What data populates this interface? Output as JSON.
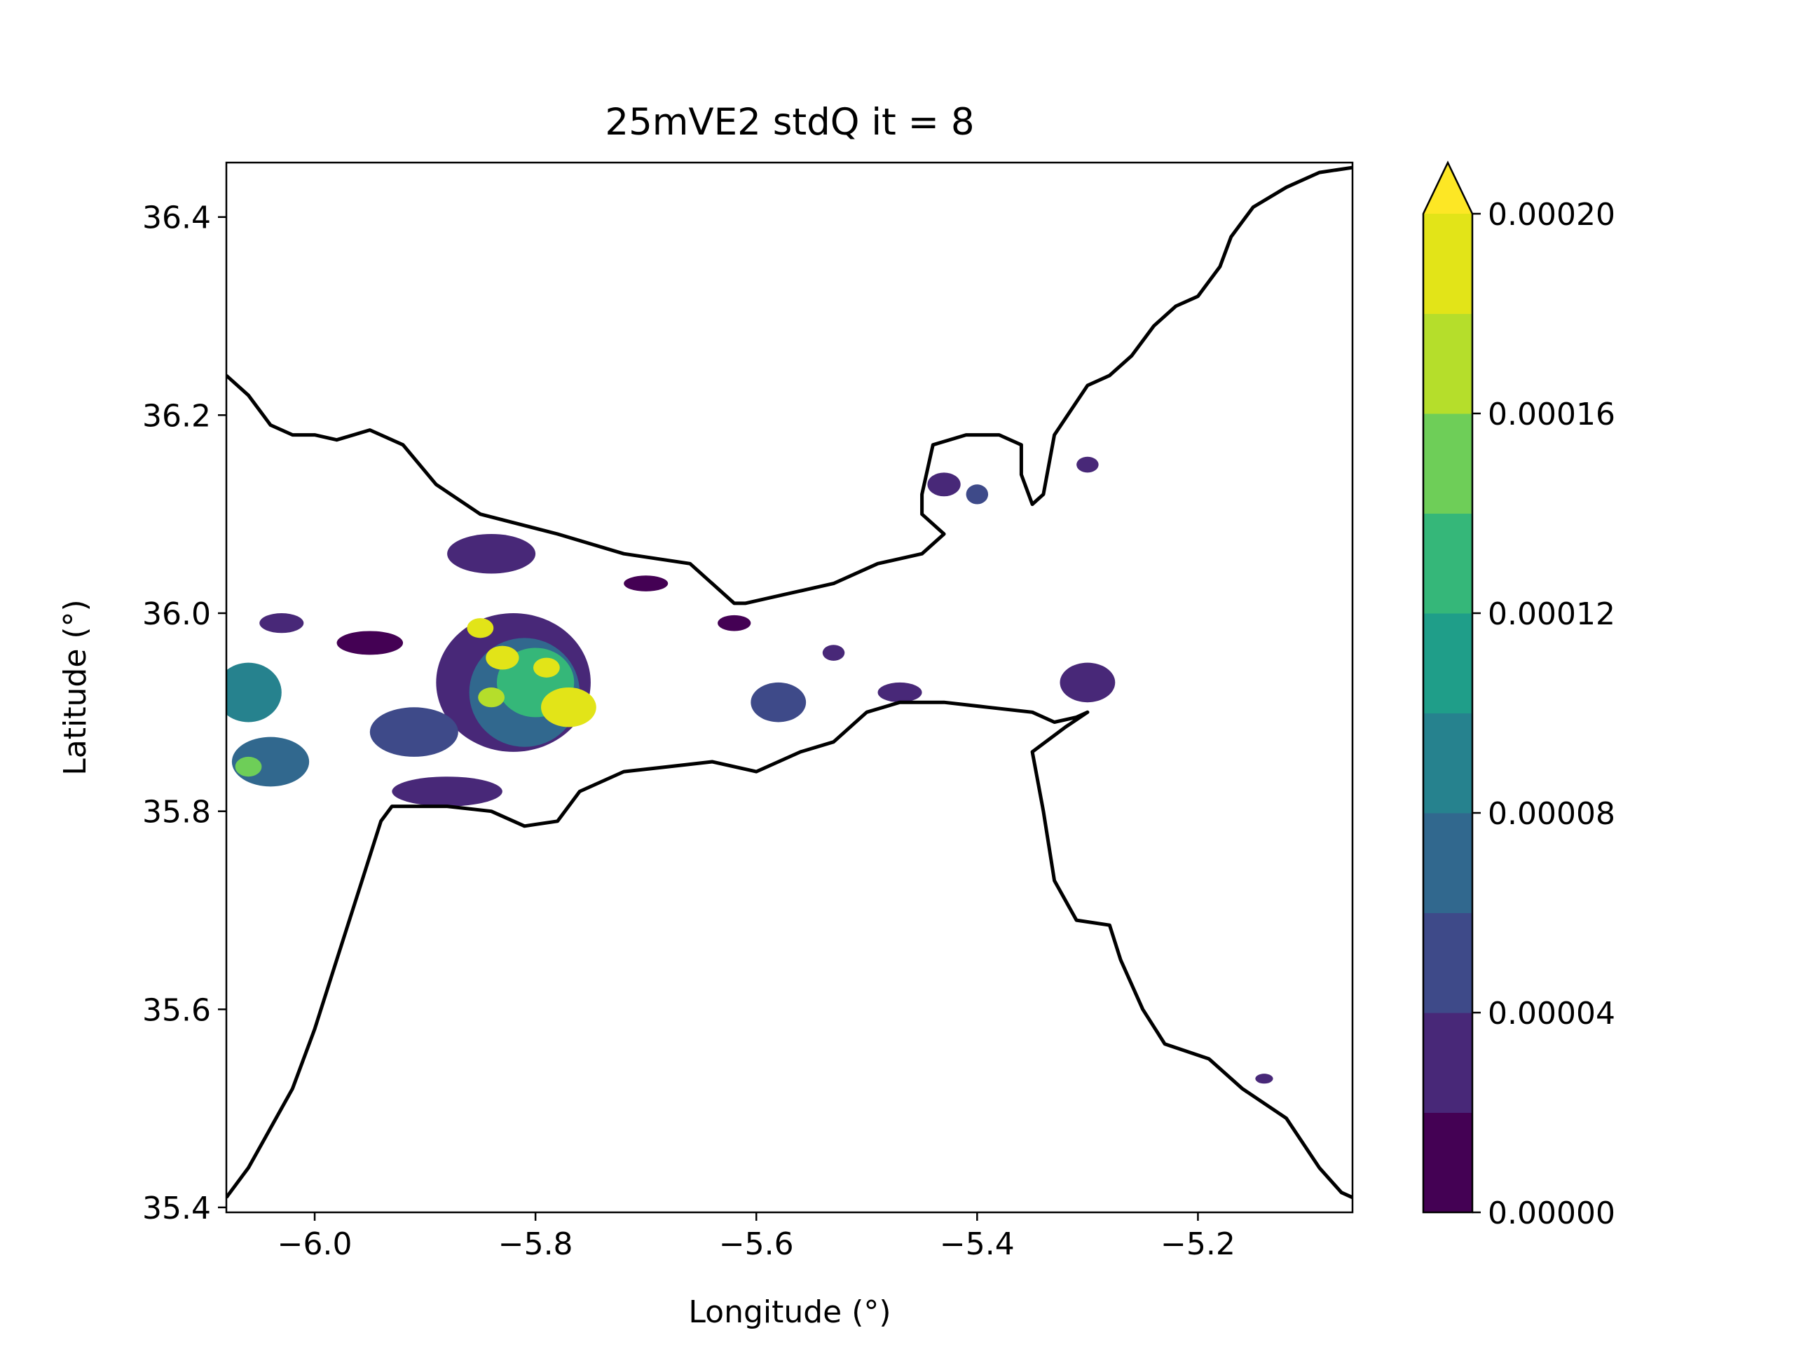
{
  "chart_data": {
    "type": "heatmap",
    "title": "25mVE2 stdQ it = 8",
    "xlabel": "Longitude (°)",
    "ylabel": "Latitude (°)",
    "xlim": [
      -6.08,
      -5.06
    ],
    "ylim": [
      35.395,
      36.455
    ],
    "x_ticks": [
      -6.0,
      -5.8,
      -5.6,
      -5.4,
      -5.2
    ],
    "x_tick_labels": [
      "−6.0",
      "−5.8",
      "−5.6",
      "−5.4",
      "−5.2"
    ],
    "y_ticks": [
      35.4,
      35.6,
      35.8,
      36.0,
      36.2,
      36.4
    ],
    "y_tick_labels": [
      "35.4",
      "35.6",
      "35.8",
      "36.0",
      "36.2",
      "36.4"
    ],
    "grid": false,
    "colorbar": {
      "min": 0.0,
      "max": 0.0002,
      "extend": "max",
      "ticks": [
        0.0,
        4e-05,
        8e-05,
        0.00012,
        0.00016,
        0.0002
      ],
      "tick_labels": [
        "0.00000",
        "0.00004",
        "0.00008",
        "0.00012",
        "0.00016",
        "0.00020"
      ],
      "colors": [
        "#440154",
        "#482878",
        "#3e4a89",
        "#31688e",
        "#26828e",
        "#1f9e89",
        "#35b779",
        "#6ece58",
        "#b5de2b",
        "#e2e418"
      ],
      "extend_color": "#fde725"
    },
    "coastline_north": [
      [
        -6.08,
        36.24
      ],
      [
        -6.06,
        36.22
      ],
      [
        -6.04,
        36.19
      ],
      [
        -6.02,
        36.18
      ],
      [
        -6.0,
        36.18
      ],
      [
        -5.98,
        36.175
      ],
      [
        -5.95,
        36.185
      ],
      [
        -5.92,
        36.17
      ],
      [
        -5.89,
        36.13
      ],
      [
        -5.85,
        36.1
      ],
      [
        -5.78,
        36.08
      ],
      [
        -5.72,
        36.06
      ],
      [
        -5.66,
        36.05
      ],
      [
        -5.62,
        36.01
      ],
      [
        -5.61,
        36.01
      ],
      [
        -5.57,
        36.02
      ],
      [
        -5.53,
        36.03
      ],
      [
        -5.49,
        36.05
      ],
      [
        -5.45,
        36.06
      ],
      [
        -5.43,
        36.08
      ],
      [
        -5.45,
        36.1
      ],
      [
        -5.45,
        36.12
      ],
      [
        -5.44,
        36.17
      ],
      [
        -5.41,
        36.18
      ],
      [
        -5.38,
        36.18
      ],
      [
        -5.36,
        36.17
      ],
      [
        -5.36,
        36.14
      ],
      [
        -5.35,
        36.11
      ],
      [
        -5.34,
        36.12
      ],
      [
        -5.33,
        36.18
      ],
      [
        -5.3,
        36.23
      ],
      [
        -5.28,
        36.24
      ],
      [
        -5.26,
        36.26
      ],
      [
        -5.24,
        36.29
      ],
      [
        -5.22,
        36.31
      ],
      [
        -5.2,
        36.32
      ],
      [
        -5.18,
        36.35
      ],
      [
        -5.17,
        36.38
      ],
      [
        -5.15,
        36.41
      ],
      [
        -5.12,
        36.43
      ],
      [
        -5.09,
        36.445
      ],
      [
        -5.06,
        36.45
      ]
    ],
    "coastline_south": [
      [
        -6.08,
        35.41
      ],
      [
        -6.06,
        35.44
      ],
      [
        -6.04,
        35.48
      ],
      [
        -6.02,
        35.52
      ],
      [
        -6.0,
        35.58
      ],
      [
        -5.98,
        35.65
      ],
      [
        -5.96,
        35.72
      ],
      [
        -5.94,
        35.79
      ],
      [
        -5.93,
        35.805
      ],
      [
        -5.88,
        35.805
      ],
      [
        -5.84,
        35.8
      ],
      [
        -5.81,
        35.785
      ],
      [
        -5.78,
        35.79
      ],
      [
        -5.76,
        35.82
      ],
      [
        -5.72,
        35.84
      ],
      [
        -5.68,
        35.845
      ],
      [
        -5.64,
        35.85
      ],
      [
        -5.6,
        35.84
      ],
      [
        -5.56,
        35.86
      ],
      [
        -5.53,
        35.87
      ],
      [
        -5.5,
        35.9
      ],
      [
        -5.47,
        35.91
      ],
      [
        -5.43,
        35.91
      ],
      [
        -5.39,
        35.905
      ],
      [
        -5.35,
        35.9
      ],
      [
        -5.33,
        35.89
      ],
      [
        -5.31,
        35.895
      ],
      [
        -5.3,
        35.9
      ],
      [
        -5.32,
        35.885
      ],
      [
        -5.35,
        35.86
      ],
      [
        -5.34,
        35.8
      ],
      [
        -5.33,
        35.73
      ],
      [
        -5.31,
        35.69
      ],
      [
        -5.28,
        35.685
      ],
      [
        -5.27,
        35.65
      ],
      [
        -5.25,
        35.6
      ],
      [
        -5.23,
        35.565
      ],
      [
        -5.19,
        35.55
      ],
      [
        -5.16,
        35.52
      ],
      [
        -5.12,
        35.49
      ],
      [
        -5.09,
        35.44
      ],
      [
        -5.07,
        35.415
      ],
      [
        -5.06,
        35.41
      ]
    ],
    "patches": [
      {
        "x": -5.82,
        "y": 35.93,
        "rx": 0.07,
        "ry": 0.07,
        "level": 1
      },
      {
        "x": -5.81,
        "y": 35.92,
        "rx": 0.05,
        "ry": 0.055,
        "level": 3
      },
      {
        "x": -5.8,
        "y": 35.93,
        "rx": 0.035,
        "ry": 0.035,
        "level": 6
      },
      {
        "x": -5.77,
        "y": 35.905,
        "rx": 0.025,
        "ry": 0.02,
        "level": 9
      },
      {
        "x": -5.83,
        "y": 35.955,
        "rx": 0.015,
        "ry": 0.012,
        "level": 9
      },
      {
        "x": -5.84,
        "y": 35.915,
        "rx": 0.012,
        "ry": 0.01,
        "level": 8
      },
      {
        "x": -5.85,
        "y": 35.985,
        "rx": 0.012,
        "ry": 0.01,
        "level": 9
      },
      {
        "x": -5.79,
        "y": 35.945,
        "rx": 0.012,
        "ry": 0.01,
        "level": 9
      },
      {
        "x": -6.06,
        "y": 35.92,
        "rx": 0.03,
        "ry": 0.03,
        "level": 4
      },
      {
        "x": -6.04,
        "y": 35.85,
        "rx": 0.035,
        "ry": 0.025,
        "level": 3
      },
      {
        "x": -6.06,
        "y": 35.845,
        "rx": 0.012,
        "ry": 0.01,
        "level": 7
      },
      {
        "x": -5.91,
        "y": 35.88,
        "rx": 0.04,
        "ry": 0.025,
        "level": 2
      },
      {
        "x": -5.88,
        "y": 35.82,
        "rx": 0.05,
        "ry": 0.015,
        "level": 1
      },
      {
        "x": -5.84,
        "y": 36.06,
        "rx": 0.04,
        "ry": 0.02,
        "level": 1
      },
      {
        "x": -5.95,
        "y": 35.97,
        "rx": 0.03,
        "ry": 0.012,
        "level": 0
      },
      {
        "x": -5.58,
        "y": 35.91,
        "rx": 0.025,
        "ry": 0.02,
        "level": 2
      },
      {
        "x": -5.53,
        "y": 35.96,
        "rx": 0.01,
        "ry": 0.008,
        "level": 1
      },
      {
        "x": -5.47,
        "y": 35.92,
        "rx": 0.02,
        "ry": 0.01,
        "level": 1
      },
      {
        "x": -5.3,
        "y": 35.93,
        "rx": 0.025,
        "ry": 0.02,
        "level": 1
      },
      {
        "x": -5.43,
        "y": 36.13,
        "rx": 0.015,
        "ry": 0.012,
        "level": 1
      },
      {
        "x": -5.4,
        "y": 36.12,
        "rx": 0.01,
        "ry": 0.01,
        "level": 2
      },
      {
        "x": -5.3,
        "y": 36.15,
        "rx": 0.01,
        "ry": 0.008,
        "level": 1
      },
      {
        "x": -5.62,
        "y": 35.99,
        "rx": 0.015,
        "ry": 0.008,
        "level": 0
      },
      {
        "x": -5.7,
        "y": 36.03,
        "rx": 0.02,
        "ry": 0.008,
        "level": 0
      },
      {
        "x": -5.14,
        "y": 35.53,
        "rx": 0.008,
        "ry": 0.005,
        "level": 1
      },
      {
        "x": -6.03,
        "y": 35.99,
        "rx": 0.02,
        "ry": 0.01,
        "level": 1
      }
    ]
  }
}
